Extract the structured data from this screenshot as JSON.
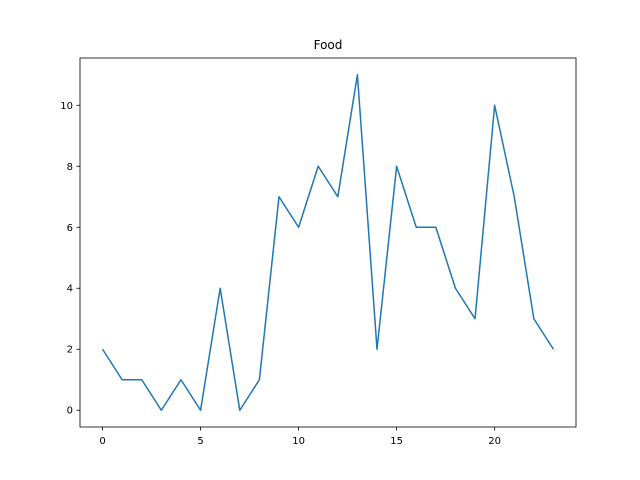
{
  "chart_data": {
    "type": "line",
    "title": "Food",
    "xlabel": "",
    "ylabel": "",
    "x": [
      0,
      1,
      2,
      3,
      4,
      5,
      6,
      7,
      8,
      9,
      10,
      11,
      12,
      13,
      14,
      15,
      16,
      17,
      18,
      19,
      20,
      21,
      22,
      23
    ],
    "series": [
      {
        "values": [
          2,
          1,
          1,
          0,
          1,
          0,
          4,
          0,
          1,
          7,
          6,
          8,
          7,
          11,
          2,
          8,
          6,
          6,
          4,
          3,
          10,
          7,
          3,
          2
        ],
        "color": "#1f77b4"
      }
    ],
    "xlim": [
      -1.15,
      24.15
    ],
    "ylim": [
      -0.55,
      11.55
    ],
    "xticks": [
      0,
      5,
      10,
      15,
      20
    ],
    "yticks": [
      0,
      2,
      4,
      6,
      8,
      10
    ],
    "grid": false,
    "legend": "none"
  }
}
